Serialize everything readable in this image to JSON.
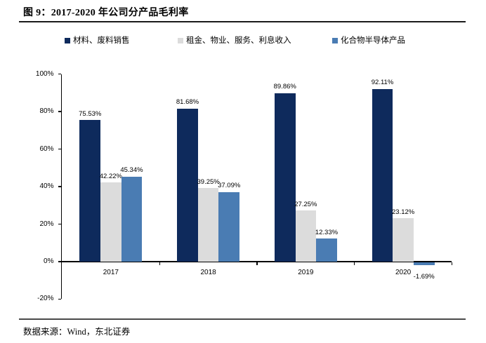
{
  "figure": {
    "title": "图 9：2017-2020 年公司分产品毛利率",
    "source": "数据来源：Wind，东北证券"
  },
  "chart_data": {
    "type": "bar",
    "title": "2017-2020 年公司分产品毛利率",
    "categories": [
      "2017",
      "2018",
      "2019",
      "2020"
    ],
    "series": [
      {
        "name": "材料、废料销售",
        "color": "#0e2a5c",
        "values": [
          75.53,
          81.68,
          89.86,
          92.11
        ]
      },
      {
        "name": "租金、物业、服务、利息收入",
        "color": "#dcdcdc",
        "values": [
          42.22,
          39.25,
          27.25,
          23.12
        ]
      },
      {
        "name": "化合物半导体产品",
        "color": "#4a7cb3",
        "values": [
          45.34,
          37.09,
          12.33,
          -1.69
        ]
      }
    ],
    "xlabel": "",
    "ylabel": "",
    "ylim": [
      -20,
      100
    ],
    "ytick_step": 20,
    "ytick_suffix": "%",
    "value_labels": true,
    "value_label_suffix": "%",
    "grid": false,
    "legend_position": "top",
    "axis_color": "#000000"
  }
}
